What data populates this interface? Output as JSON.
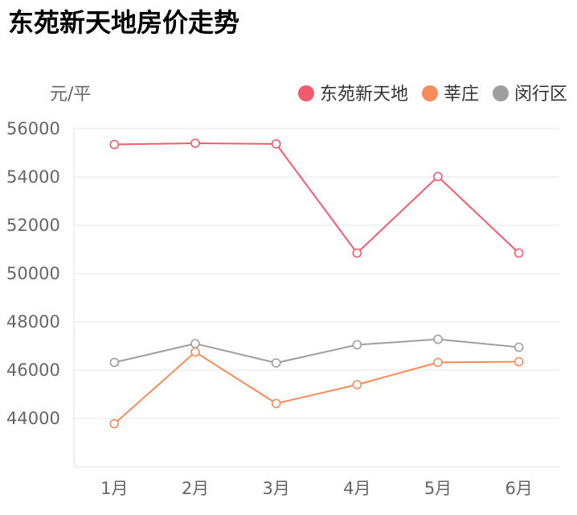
{
  "title": "东苑新天地房价走势",
  "chart_data": {
    "type": "line",
    "title": "东苑新天地房价走势",
    "ylabel": "元/平",
    "xlabel": "",
    "categories": [
      "1月",
      "2月",
      "3月",
      "4月",
      "5月",
      "6月"
    ],
    "ylim": [
      42000,
      56000
    ],
    "yticks": [
      44000,
      46000,
      48000,
      50000,
      52000,
      54000,
      56000
    ],
    "grid": true,
    "legend_position": "top-right",
    "series": [
      {
        "name": "东苑新天地",
        "color": "#f25a6e",
        "values": [
          55350,
          55400,
          55370,
          50850,
          54020,
          50850
        ]
      },
      {
        "name": "莘庄",
        "color": "#f98a5a",
        "values": [
          43780,
          46750,
          44620,
          45400,
          46320,
          46350
        ]
      },
      {
        "name": "闵行区",
        "color": "#9e9e9e",
        "values": [
          46320,
          47100,
          46300,
          47050,
          47280,
          46950
        ]
      }
    ]
  }
}
